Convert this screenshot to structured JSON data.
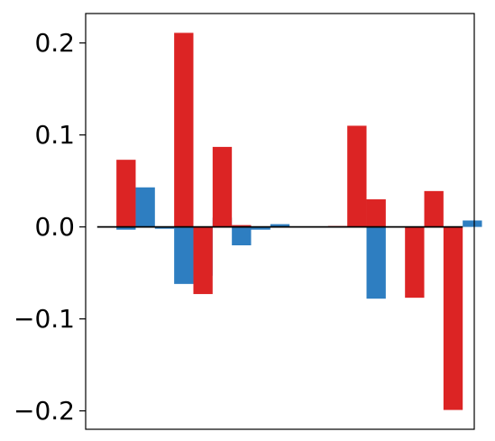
{
  "chart_data": {
    "type": "bar",
    "title": "",
    "xlabel": "",
    "ylabel": "",
    "ylim": [
      -0.22,
      0.232
    ],
    "xlim": [
      -0.6,
      19.6
    ],
    "yticks": [
      -0.2,
      -0.1,
      0.0,
      0.1,
      0.2
    ],
    "ytick_labels": [
      "−0.2",
      "−0.1",
      "0.0",
      "0.1",
      "0.2"
    ],
    "xticks_visible": false,
    "grid": false,
    "legend": "none",
    "baseline": 0.0,
    "series": [
      {
        "color": "#2e7ec1",
        "x": [
          1,
          2,
          3,
          4,
          5,
          6,
          7,
          8,
          9,
          10,
          11,
          12,
          13,
          14,
          15,
          16,
          17,
          18,
          19
        ],
        "values": [
          -0.003,
          0.043,
          -0.002,
          -0.062,
          -0.053,
          0.01,
          -0.02,
          -0.003,
          0.003,
          0.0,
          0.0,
          0.0,
          0.0,
          -0.078,
          0.0,
          0.0,
          0.0,
          0.0,
          0.007
        ]
      },
      {
        "color": "#dc2424",
        "x": [
          0,
          1,
          2,
          3,
          4,
          5,
          6,
          7,
          8,
          9,
          10,
          11,
          12,
          13,
          14,
          15,
          16,
          17,
          18
        ],
        "values": [
          0.0,
          0.073,
          0.0,
          0.0,
          0.211,
          -0.073,
          0.087,
          0.002,
          0.0,
          0.0,
          0.0,
          0.0,
          0.001,
          0.11,
          0.03,
          0.0,
          -0.077,
          0.039,
          -0.199
        ]
      }
    ]
  }
}
